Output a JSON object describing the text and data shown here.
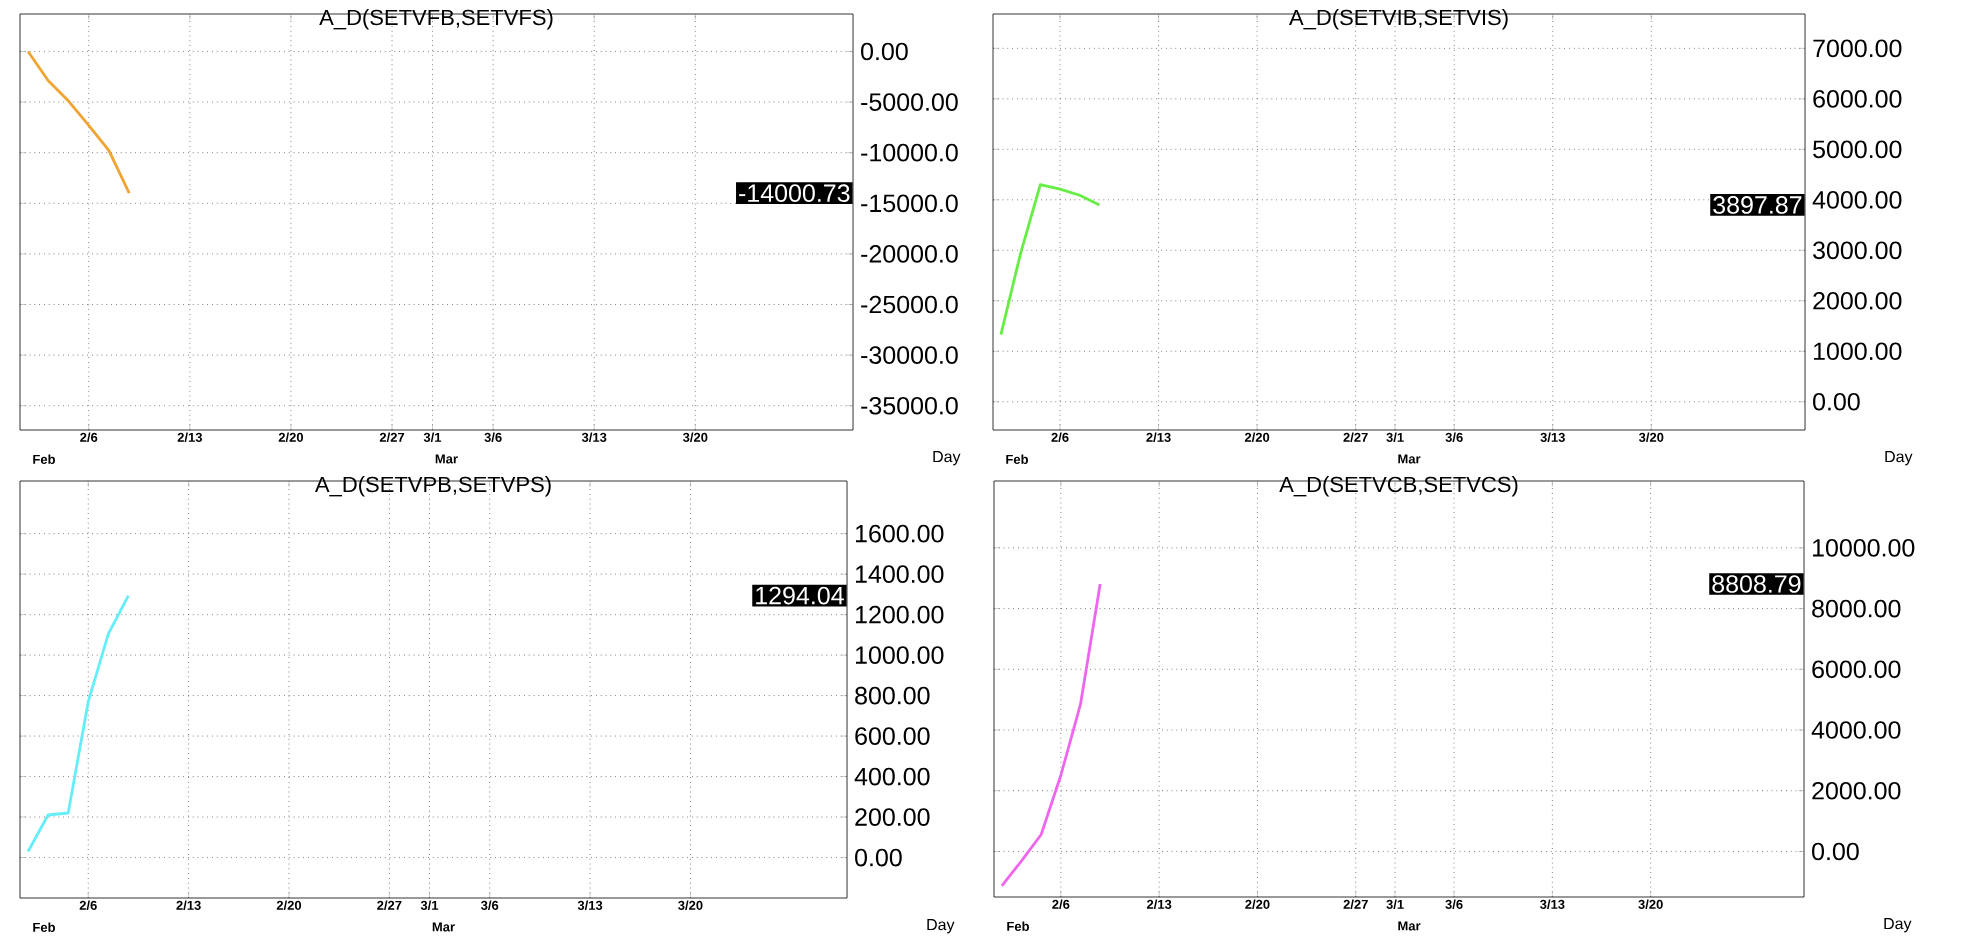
{
  "chart_data": [
    {
      "type": "line",
      "title": "A_D(SETVFB,SETVFS)",
      "color": "#f0a432",
      "categories": [
        null,
        null,
        null,
        "2/6",
        null,
        null,
        null,
        null,
        "2/13",
        null,
        null,
        null,
        null,
        "2/20",
        null,
        null,
        null,
        null,
        "2/27",
        null,
        "3/1",
        null,
        null,
        "3/6",
        null,
        null,
        null,
        null,
        "3/13",
        null,
        null,
        null,
        null,
        "3/20",
        null,
        null,
        null,
        null,
        null,
        null,
        null
      ],
      "values": [
        0,
        -2900,
        -4900,
        -7300,
        -9800,
        -14000.73,
        null,
        null,
        null,
        null,
        null,
        null,
        null,
        null,
        null,
        null,
        null,
        null,
        null,
        null,
        null,
        null,
        null,
        null,
        null,
        null,
        null,
        null,
        null,
        null,
        null,
        null,
        null,
        null,
        null,
        null,
        null,
        null,
        null,
        null,
        null
      ],
      "ylim": [
        -37400,
        3700
      ],
      "yticks": [
        {
          "value": 0,
          "label": "0.00"
        },
        {
          "value": -5000,
          "label": "-5000.00"
        },
        {
          "value": -10000,
          "label": "-10000.0"
        },
        {
          "value": -15000,
          "label": "-15000.0"
        },
        {
          "value": -20000,
          "label": "-20000.0"
        },
        {
          "value": -25000,
          "label": "-25000.0"
        },
        {
          "value": -30000,
          "label": "-30000.0"
        },
        {
          "value": -35000,
          "label": "-35000.0"
        }
      ],
      "grid": true,
      "annotations": [
        "-14000.73",
        "Feb",
        "Mar",
        "Day"
      ]
    },
    {
      "type": "line",
      "title": "A_D(SETVIB,SETVIS)",
      "color": "#66ee44",
      "categories": [
        null,
        null,
        null,
        "2/6",
        null,
        null,
        null,
        null,
        "2/13",
        null,
        null,
        null,
        null,
        "2/20",
        null,
        null,
        null,
        null,
        "2/27",
        null,
        "3/1",
        null,
        null,
        "3/6",
        null,
        null,
        null,
        null,
        "3/13",
        null,
        null,
        null,
        null,
        "3/20",
        null,
        null,
        null,
        null,
        null,
        null,
        null
      ],
      "values": [
        1330,
        2940,
        4300,
        4210,
        4090,
        3897.87,
        null,
        null,
        null,
        null,
        null,
        null,
        null,
        null,
        null,
        null,
        null,
        null,
        null,
        null,
        null,
        null,
        null,
        null,
        null,
        null,
        null,
        null,
        null,
        null,
        null,
        null,
        null,
        null,
        null,
        null,
        null,
        null,
        null,
        null,
        null
      ],
      "ylim": [
        -560,
        7680
      ],
      "yticks": [
        {
          "value": 0,
          "label": "0.00"
        },
        {
          "value": 1000,
          "label": "1000.00"
        },
        {
          "value": 2000,
          "label": "2000.00"
        },
        {
          "value": 3000,
          "label": "3000.00"
        },
        {
          "value": 4000,
          "label": "4000.00"
        },
        {
          "value": 5000,
          "label": "5000.00"
        },
        {
          "value": 6000,
          "label": "6000.00"
        },
        {
          "value": 7000,
          "label": "7000.00"
        }
      ],
      "grid": true,
      "annotations": [
        "3897.87",
        "Feb",
        "Mar",
        "Day"
      ]
    },
    {
      "type": "line",
      "title": "A_D(SETVPB,SETVPS)",
      "color": "#66eef8",
      "categories": [
        null,
        null,
        null,
        "2/6",
        null,
        null,
        null,
        null,
        "2/13",
        null,
        null,
        null,
        null,
        "2/20",
        null,
        null,
        null,
        null,
        "2/27",
        null,
        "3/1",
        null,
        null,
        "3/6",
        null,
        null,
        null,
        null,
        "3/13",
        null,
        null,
        null,
        null,
        "3/20",
        null,
        null,
        null,
        null,
        null,
        null,
        null
      ],
      "values": [
        30,
        210,
        220,
        770,
        1105,
        1294.04,
        null,
        null,
        null,
        null,
        null,
        null,
        null,
        null,
        null,
        null,
        null,
        null,
        null,
        null,
        null,
        null,
        null,
        null,
        null,
        null,
        null,
        null,
        null,
        null,
        null,
        null,
        null,
        null,
        null,
        null,
        null,
        null,
        null,
        null,
        null
      ],
      "ylim": [
        -200,
        1860
      ],
      "yticks": [
        {
          "value": 0,
          "label": "0.00"
        },
        {
          "value": 200,
          "label": "200.00"
        },
        {
          "value": 400,
          "label": "400.00"
        },
        {
          "value": 600,
          "label": "600.00"
        },
        {
          "value": 800,
          "label": "800.00"
        },
        {
          "value": 1000,
          "label": "1000.00"
        },
        {
          "value": 1200,
          "label": "1200.00"
        },
        {
          "value": 1400,
          "label": "1400.00"
        },
        {
          "value": 1600,
          "label": "1600.00"
        }
      ],
      "grid": true,
      "annotations": [
        "1294.04",
        "Feb",
        "Mar",
        "Day"
      ]
    },
    {
      "type": "line",
      "title": "A_D(SETVCB,SETVCS)",
      "color": "#ee66ee",
      "categories": [
        null,
        null,
        null,
        "2/6",
        null,
        null,
        null,
        null,
        "2/13",
        null,
        null,
        null,
        null,
        "2/20",
        null,
        null,
        null,
        null,
        "2/27",
        null,
        "3/1",
        null,
        null,
        "3/6",
        null,
        null,
        null,
        null,
        "3/13",
        null,
        null,
        null,
        null,
        "3/20",
        null,
        null,
        null,
        null,
        null,
        null,
        null
      ],
      "values": [
        -1130,
        -310,
        560,
        2510,
        4850,
        8808.79,
        null,
        null,
        null,
        null,
        null,
        null,
        null,
        null,
        null,
        null,
        null,
        null,
        null,
        null,
        null,
        null,
        null,
        null,
        null,
        null,
        null,
        null,
        null,
        null,
        null,
        null,
        null,
        null,
        null,
        null,
        null,
        null,
        null,
        null,
        null
      ],
      "ylim": [
        -1500,
        12200
      ],
      "yticks": [
        {
          "value": 0,
          "label": "0.00"
        },
        {
          "value": 2000,
          "label": "2000.00"
        },
        {
          "value": 4000,
          "label": "4000.00"
        },
        {
          "value": 6000,
          "label": "6000.00"
        },
        {
          "value": 8000,
          "label": "8000.00"
        },
        {
          "value": 10000,
          "label": "10000.00"
        }
      ],
      "grid": true,
      "annotations": [
        "8808.79",
        "Feb",
        "Mar",
        "Day"
      ]
    }
  ]
}
